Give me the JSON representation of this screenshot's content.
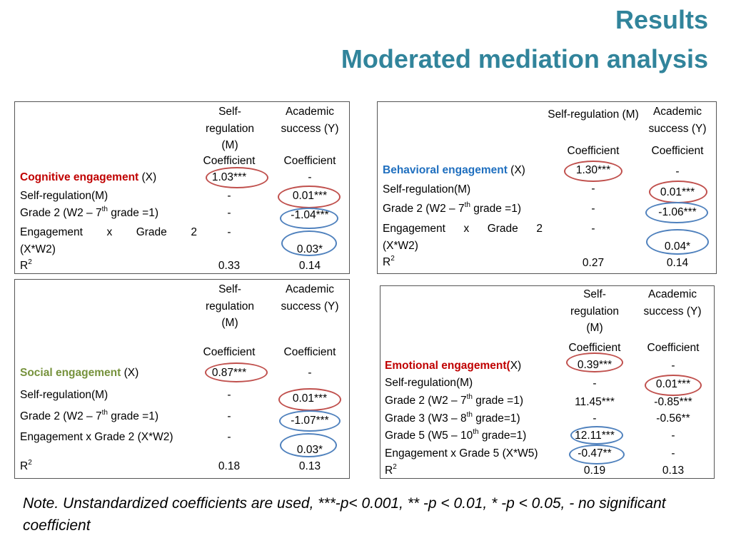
{
  "title": {
    "line1": "Results",
    "line2": "Moderated mediation analysis"
  },
  "common": {
    "self_regulation_header": "Self-regulation (M)",
    "academic_header": "Academic success (Y)",
    "coefficient": "Coefficient",
    "r_squared": "R",
    "r_squared_sup": "2",
    "sup_th": "th"
  },
  "tables": {
    "cognitive": {
      "x_name": "Cognitive engagement",
      "x_suffix": " (X)",
      "row_self_reg": "Self-regulation(M)",
      "row_grade2_pre": "Grade 2 (W2 – 7",
      "row_grade2_post": " grade =1)",
      "interaction_words": [
        "Engagement",
        "x",
        "Grade",
        "2"
      ],
      "interaction_line2": "(X*W2)",
      "m": {
        "x": "1.03***",
        "self_reg": "-",
        "grade2": "-",
        "interaction": "-",
        "r2": "0.33"
      },
      "y": {
        "x": "-",
        "self_reg": "0.01***",
        "grade2": "-1.04***",
        "interaction": "0.03*",
        "r2": "0.14"
      }
    },
    "behavioral": {
      "x_name": "Behavioral engagement",
      "x_suffix": " (X)",
      "row_self_reg": "Self-regulation(M)",
      "row_grade2_pre": "Grade 2 (W2 – 7",
      "row_grade2_post": " grade =1)",
      "interaction_words": [
        "Engagement",
        "x",
        "Grade",
        "2"
      ],
      "interaction_line2": "(X*W2)",
      "m": {
        "x": "1.30***",
        "self_reg": "-",
        "grade2": "-",
        "interaction": "-",
        "r2": "0.27"
      },
      "y": {
        "x": "-",
        "self_reg": "0.01***",
        "grade2": "-1.06***",
        "interaction": "0.04*",
        "r2": "0.14"
      }
    },
    "social": {
      "x_name": "Social engagement",
      "x_suffix": " (X)",
      "row_self_reg": "Self-regulation(M)",
      "row_grade2_pre": "Grade 2 (W2 – 7",
      "row_grade2_post": " grade =1)",
      "row_interaction": "Engagement x Grade 2 (X*W2)",
      "m": {
        "x": "0.87***",
        "self_reg": "-",
        "grade2": "-",
        "interaction": "-",
        "r2": "0.18"
      },
      "y": {
        "x": "-",
        "self_reg": "0.01***",
        "grade2": "-1.07***",
        "interaction": "0.03*",
        "r2": "0.13"
      }
    },
    "emotional": {
      "x_name": "Emotional engagement(",
      "x_suffix": "X)",
      "row_self_reg": "Self-regulation(M)",
      "row_grade2_pre": "Grade 2 (W2 – 7",
      "row_grade2_post": " grade =1)",
      "row_grade3_pre": "Grade 3 (W3 – 8",
      "row_grade3_post": " grade=1)",
      "row_grade5_pre": "Grade 5 (W5 – 10",
      "row_grade5_post": " grade=1)",
      "row_interaction": "Engagement x Grade 5 (X*W5)",
      "m": {
        "x": "0.39***",
        "self_reg": "-",
        "grade2": "11.45***",
        "grade3": "-",
        "grade5": "12.11***",
        "interaction": "-0.47**",
        "r2": "0.19"
      },
      "y": {
        "x": "-",
        "self_reg": "0.01***",
        "grade2": "-0.85***",
        "grade3": "-0.56**",
        "grade5": "-",
        "interaction": "-",
        "r2": "0.13"
      }
    }
  },
  "note": "Note. Unstandardized coefficients are used, ***-p< 0.001, ** -p < 0.01, * -p < 0.05, - no significant coefficient",
  "colors": {
    "title": "#31849b",
    "cognitive": "#c00000",
    "behavioral": "#1f6fbf",
    "social": "#76923c",
    "emotional": "#c00000",
    "ring_red": "#c0504d",
    "ring_blue": "#4f81bd"
  }
}
